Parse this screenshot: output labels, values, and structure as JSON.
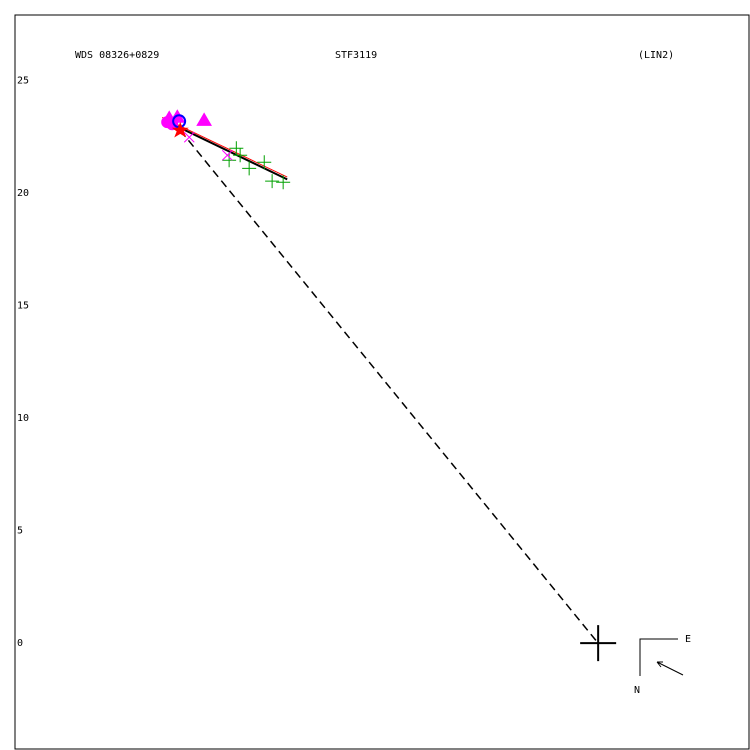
{
  "chart_data": {
    "type": "scatter",
    "header": [
      "WDS 08326+0829",
      "STF3119",
      "(LIN2)"
    ],
    "compass": {
      "east": "E",
      "north": "N"
    },
    "xlim": [
      -25.9,
      6.7
    ],
    "ylim": [
      -4.7,
      27.9
    ],
    "yticks": [
      0,
      5,
      10,
      15,
      20,
      25
    ],
    "series": [
      {
        "marker": "line",
        "color": "#ff0000",
        "x": [
          -19.36,
          -13.81
        ],
        "y": [
          23.35,
          20.7
        ]
      },
      {
        "marker": "line",
        "color": "#000000",
        "x": [
          -19.36,
          -13.81
        ],
        "y": [
          23.27,
          20.6
        ]
      },
      {
        "marker": "plus",
        "color": "#00a000",
        "x": [
          -16.39,
          -16.07,
          -15.9,
          -15.5,
          -14.83,
          -14.48,
          -13.99
        ],
        "y": [
          21.45,
          21.98,
          21.67,
          21.09,
          21.36,
          20.52,
          20.47
        ]
      },
      {
        "marker": "x",
        "color": "#ff00ff",
        "x": [
          -16.47,
          -18.16
        ],
        "y": [
          21.67,
          22.47
        ]
      },
      {
        "marker": "triangle",
        "color": "#ff00ff",
        "x": [
          -17.5,
          -19.05,
          -18.69
        ],
        "y": [
          23.22,
          23.31,
          23.36
        ]
      },
      {
        "marker": "circle",
        "color": "#ff00ff",
        "x": [
          -19.14,
          -18.92
        ],
        "y": [
          23.14,
          23.05
        ]
      },
      {
        "marker": "ring",
        "color": "#0000ff",
        "x": [
          -18.61
        ],
        "y": [
          23.18
        ]
      },
      {
        "marker": "star",
        "color": "#ff0000",
        "x": [
          -18.56
        ],
        "y": [
          22.78
        ]
      },
      {
        "marker": "cross",
        "color": "#000000",
        "x": [
          0
        ],
        "y": [
          0
        ]
      }
    ],
    "link": [
      7,
      8
    ]
  }
}
